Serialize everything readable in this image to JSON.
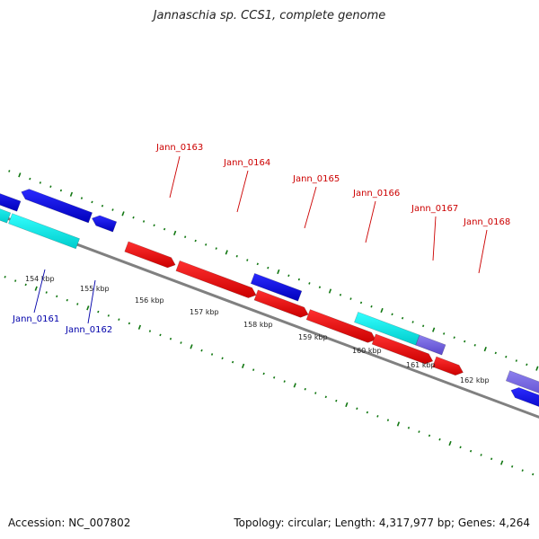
{
  "title": "Jannaschia sp. CCS1, complete genome",
  "footer": {
    "accession": "Accession: NC_007802",
    "summary": "Topology: circular; Length: 4,317,977 bp; Genes: 4,264"
  },
  "colors": {
    "forward_gene": "#ee0000",
    "reverse_gene": "#0000dd",
    "cyan_gene": "#00eeee",
    "purple_gene": "#7766dd",
    "backbone": "#808080",
    "tick": "#117711",
    "forward_label": "#cc0000",
    "reverse_label": "#0000aa"
  },
  "scale_labels": [
    "154 kbp",
    "155 kbp",
    "156 kbp",
    "157 kbp",
    "158 kbp",
    "159 kbp",
    "160 kbp",
    "161 kbp",
    "162 kbp"
  ],
  "forward_labels": [
    "Jann_0163",
    "Jann_0164",
    "Jann_0165",
    "Jann_0166",
    "Jann_0167",
    "Jann_0168"
  ],
  "reverse_labels": [
    "Jann_0161",
    "Jann_0162"
  ]
}
